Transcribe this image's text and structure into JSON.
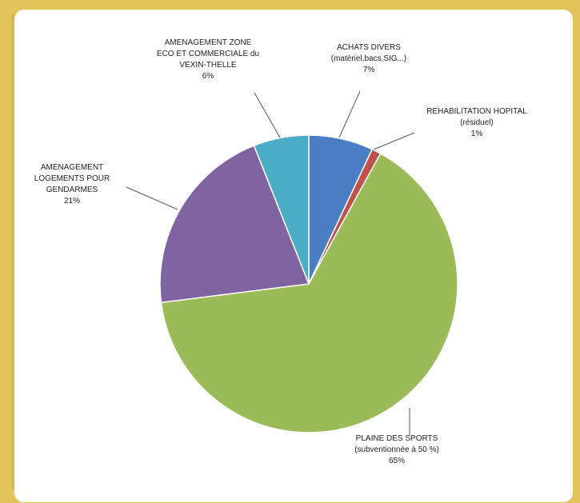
{
  "chart_data": {
    "type": "pie",
    "slices": [
      {
        "lines": [
          "ACHATS DIVERS",
          "(matériel,bacs,SIG...)",
          "7%"
        ],
        "value": 7,
        "color": "#4a7ec4"
      },
      {
        "lines": [
          "REHABILITATION HOPITAL",
          "(résiduel)",
          "1%"
        ],
        "value": 1,
        "color": "#c0504d"
      },
      {
        "lines": [
          "PLAINE DES SPORTS",
          "(subventionnée à 50 %)",
          "65%"
        ],
        "value": 65,
        "color": "#9bbb59"
      },
      {
        "lines": [
          "AMENAGEMENT",
          "LOGEMENTS POUR",
          "GENDARMES",
          "21%"
        ],
        "value": 21,
        "color": "#8064a2"
      },
      {
        "lines": [
          "AMENAGEMENT ZONE",
          "ECO ET COMMERCIALE du",
          "VEXIN-THELLE",
          "6%"
        ],
        "value": 6,
        "color": "#4bacc6"
      }
    ]
  }
}
